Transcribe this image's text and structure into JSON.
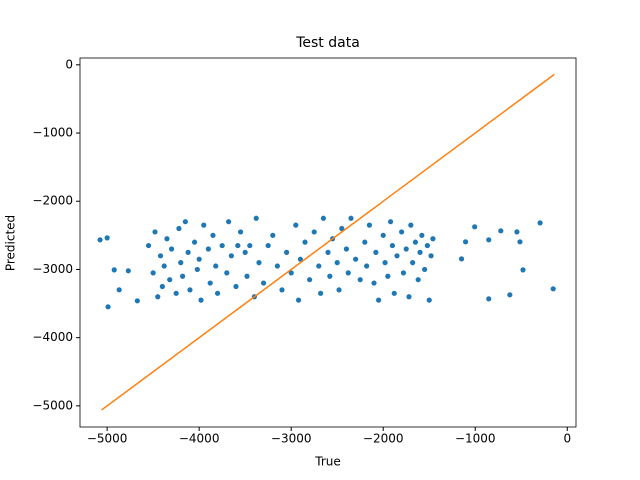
{
  "chart_data": {
    "type": "scatter",
    "title": "Test data",
    "x_label": "True",
    "y_label": "Predicted",
    "xlim": [
      -5295,
      95
    ],
    "ylim": [
      -5310,
      100
    ],
    "xticks": [
      {
        "value": -5000,
        "label": "−5000"
      },
      {
        "value": -4000,
        "label": "−4000"
      },
      {
        "value": -3000,
        "label": "−3000"
      },
      {
        "value": -2000,
        "label": "−2000"
      },
      {
        "value": -1000,
        "label": "−1000"
      },
      0
    ],
    "yticks": [
      {
        "value": -5000,
        "label": "−5000"
      },
      {
        "value": -4000,
        "label": "−4000"
      },
      {
        "value": -3000,
        "label": "−3000"
      },
      {
        "value": -2000,
        "label": "−2000"
      },
      {
        "value": -1000,
        "label": "−1000"
      },
      0
    ],
    "series": [
      {
        "kind": "scatter",
        "color": "#1f77b4",
        "x": [
          -5077,
          -5000,
          -4990,
          -4923,
          -4869,
          -4770,
          -4672,
          -1006,
          -853,
          -722,
          -547,
          -514,
          -481,
          -295,
          -153,
          -853,
          -624,
          -1105,
          -1149,
          -4550,
          -4500,
          -4480,
          -4450,
          -4420,
          -4400,
          -4380,
          -4350,
          -4320,
          -4300,
          -4250,
          -4220,
          -4200,
          -4180,
          -4150,
          -4120,
          -4100,
          -4050,
          -4020,
          -4000,
          -3980,
          -3950,
          -3900,
          -3880,
          -3850,
          -3820,
          -3800,
          -3750,
          -3700,
          -3680,
          -3650,
          -3600,
          -3580,
          -3550,
          -3500,
          -3480,
          -3450,
          -3400,
          -3380,
          -3350,
          -3300,
          -3250,
          -3200,
          -3150,
          -3100,
          -3050,
          -3000,
          -2950,
          -2920,
          -2900,
          -2850,
          -2800,
          -2750,
          -2700,
          -2680,
          -2650,
          -2600,
          -2580,
          -2550,
          -2500,
          -2480,
          -2450,
          -2400,
          -2380,
          -2350,
          -2300,
          -2250,
          -2200,
          -2180,
          -2150,
          -2100,
          -2080,
          -2050,
          -2000,
          -1980,
          -1950,
          -1920,
          -1900,
          -1880,
          -1850,
          -1800,
          -1780,
          -1750,
          -1720,
          -1700,
          -1680,
          -1650,
          -1620,
          -1600,
          -1580,
          -1550,
          -1520,
          -1500,
          -1480,
          -1460
        ],
        "y": [
          -2566,
          -2537,
          -3548,
          -3006,
          -3299,
          -3020,
          -3460,
          -2375,
          -2566,
          -2434,
          -2449,
          -2595,
          -3006,
          -2317,
          -3284,
          -3431,
          -3372,
          -2595,
          -2845,
          -2650,
          -3050,
          -2450,
          -3400,
          -2800,
          -3250,
          -2950,
          -2550,
          -3150,
          -2700,
          -3350,
          -2400,
          -2900,
          -3100,
          -2300,
          -2750,
          -3300,
          -2600,
          -3000,
          -2850,
          -3450,
          -2350,
          -2700,
          -3200,
          -2500,
          -2950,
          -3350,
          -2650,
          -3050,
          -2300,
          -2800,
          -3250,
          -2650,
          -2450,
          -2750,
          -3100,
          -2650,
          -3400,
          -2250,
          -2900,
          -3200,
          -2650,
          -2500,
          -2950,
          -3300,
          -2750,
          -3050,
          -2350,
          -3450,
          -2850,
          -2600,
          -3150,
          -2450,
          -2950,
          -3350,
          -2250,
          -2750,
          -3100,
          -2550,
          -2900,
          -3300,
          -2400,
          -2700,
          -3050,
          -2250,
          -2850,
          -3150,
          -2600,
          -2950,
          -2350,
          -3200,
          -2750,
          -3450,
          -2500,
          -2900,
          -3100,
          -2300,
          -2650,
          -3350,
          -2800,
          -2450,
          -3050,
          -2700,
          -3400,
          -2350,
          -2900,
          -2600,
          -3150,
          -2750,
          -2500,
          -3000,
          -2650,
          -3450,
          -2800,
          -2550
        ]
      },
      {
        "kind": "line",
        "color": "#ff7f0e",
        "x": [
          -5060,
          -140
        ],
        "y": [
          -5060,
          -140
        ]
      }
    ]
  }
}
